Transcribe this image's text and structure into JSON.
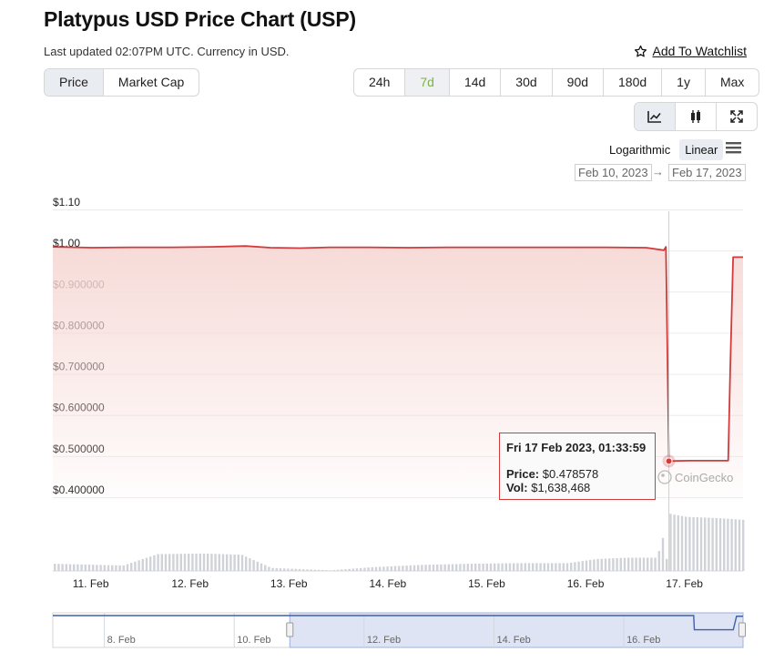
{
  "header": {
    "title": "Platypus USD Price Chart (USP)",
    "updated": "Last updated 02:07PM UTC. Currency in USD.",
    "watchlist": "Add To Watchlist"
  },
  "view_tabs": [
    "Price",
    "Market Cap"
  ],
  "range_tabs": [
    "24h",
    "7d",
    "14d",
    "30d",
    "90d",
    "180d",
    "1y",
    "Max"
  ],
  "active_range": "7d",
  "chart_types": [
    "line-chart-icon",
    "candlestick-icon",
    "expand-icon"
  ],
  "scale": {
    "log": "Logarithmic",
    "linear": "Linear",
    "active": "Linear"
  },
  "date_range": {
    "from": "Feb 10, 2023",
    "to": "Feb 17, 2023",
    "arrow": "→"
  },
  "tooltip": {
    "date": "Fri 17 Feb 2023, 01:33:59",
    "price_label": "Price:",
    "price": "$0.478578",
    "vol_label": "Vol:",
    "vol": "$1,638,468"
  },
  "watermark": "CoinGecko",
  "colors": {
    "line": "#d23b3b",
    "fill": "#f6d9d6",
    "volume": "#cfd3d8",
    "navigator": "#3f5fa8",
    "green": "#7cb342"
  },
  "chart_data": {
    "type": "area",
    "title": "Platypus USD Price Chart (USP)",
    "y_ticks": [
      "$1.10",
      "$1.00",
      "$0.900000",
      "$0.800000",
      "$0.700000",
      "$0.600000",
      "$0.500000",
      "$0.400000"
    ],
    "y_tick_values": [
      1.1,
      1.0,
      0.9,
      0.8,
      0.7,
      0.6,
      0.5,
      0.4
    ],
    "ylim": [
      0.4,
      1.1
    ],
    "x_ticks": [
      "11. Feb",
      "12. Feb",
      "13. Feb",
      "14. Feb",
      "15. Feb",
      "16. Feb",
      "17. Feb"
    ],
    "x_tick_values": [
      11,
      12,
      13,
      14,
      15,
      16,
      17
    ],
    "xlim": [
      10.8,
      17.78
    ],
    "grid": true,
    "series": [
      {
        "x": [
          10.8,
          11.2,
          11.6,
          12.0,
          12.4,
          12.75,
          13.0,
          13.3,
          13.6,
          14.0,
          14.4,
          14.8,
          15.2,
          15.6,
          16.0,
          16.4,
          16.8,
          16.98,
          17.0,
          17.03,
          17.25,
          17.45,
          17.63,
          17.65,
          17.68,
          17.78
        ],
        "y": [
          1.0,
          0.998,
          0.999,
          0.999,
          1.0,
          1.002,
          0.998,
          0.997,
          0.999,
          0.999,
          0.998,
          0.999,
          0.999,
          0.999,
          0.999,
          0.999,
          0.998,
          0.992,
          1.0,
          0.479,
          0.48,
          0.48,
          0.48,
          0.7,
          0.975,
          0.975
        ]
      }
    ],
    "volume": {
      "x": [
        10.8,
        11.5,
        11.85,
        12.3,
        12.7,
        13.0,
        13.6,
        14.0,
        14.5,
        15.0,
        15.5,
        16.0,
        16.3,
        16.6,
        16.9,
        17.03,
        17.2,
        17.5,
        17.78
      ],
      "relative_height": [
        0.12,
        0.09,
        0.28,
        0.29,
        0.27,
        0.05,
        0.01,
        0.06,
        0.1,
        0.12,
        0.13,
        0.13,
        0.2,
        0.22,
        0.22,
        0.95,
        0.9,
        0.88,
        0.85
      ]
    },
    "navigator": {
      "x_ticks": [
        "8. Feb",
        "10. Feb",
        "12. Feb",
        "14. Feb",
        "16. Feb"
      ],
      "x_tick_values": [
        8,
        10,
        12,
        14,
        16
      ],
      "selection": [
        10.8,
        17.78
      ]
    }
  }
}
